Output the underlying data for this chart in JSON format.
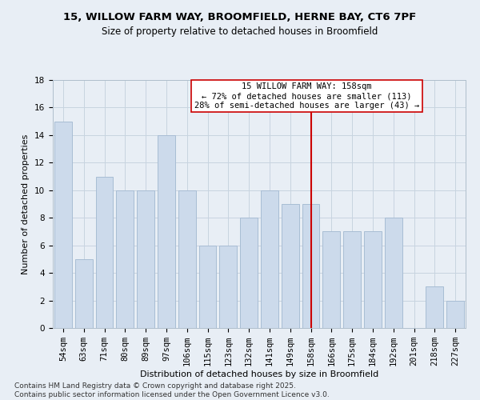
{
  "title_line1": "15, WILLOW FARM WAY, BROOMFIELD, HERNE BAY, CT6 7PF",
  "title_line2": "Size of property relative to detached houses in Broomfield",
  "xlabel": "Distribution of detached houses by size in Broomfield",
  "ylabel": "Number of detached properties",
  "categories": [
    "54sqm",
    "63sqm",
    "71sqm",
    "80sqm",
    "89sqm",
    "97sqm",
    "106sqm",
    "115sqm",
    "123sqm",
    "132sqm",
    "141sqm",
    "149sqm",
    "158sqm",
    "166sqm",
    "175sqm",
    "184sqm",
    "192sqm",
    "201sqm",
    "218sqm",
    "227sqm"
  ],
  "values": [
    15,
    5,
    11,
    10,
    10,
    14,
    10,
    6,
    6,
    8,
    10,
    9,
    9,
    7,
    7,
    7,
    8,
    0,
    3,
    2
  ],
  "bar_color": "#ccdaeb",
  "bar_edgecolor": "#a8bdd4",
  "vline_color": "#cc0000",
  "vline_x_index": 12,
  "annotation_line1": "15 WILLOW FARM WAY: 158sqm",
  "annotation_line2": "← 72% of detached houses are smaller (113)",
  "annotation_line3": "28% of semi-detached houses are larger (43) →",
  "annotation_box_facecolor": "#ffffff",
  "annotation_box_edgecolor": "#cc0000",
  "ylim": [
    0,
    18
  ],
  "yticks": [
    0,
    2,
    4,
    6,
    8,
    10,
    12,
    14,
    16,
    18
  ],
  "grid_color": "#c8d4e0",
  "background_color": "#e8eef5",
  "footer_line1": "Contains HM Land Registry data © Crown copyright and database right 2025.",
  "footer_line2": "Contains public sector information licensed under the Open Government Licence v3.0.",
  "title_fontsize": 9.5,
  "subtitle_fontsize": 8.5,
  "axis_label_fontsize": 8,
  "tick_fontsize": 7.5,
  "annotation_fontsize": 7.5,
  "footer_fontsize": 6.5
}
